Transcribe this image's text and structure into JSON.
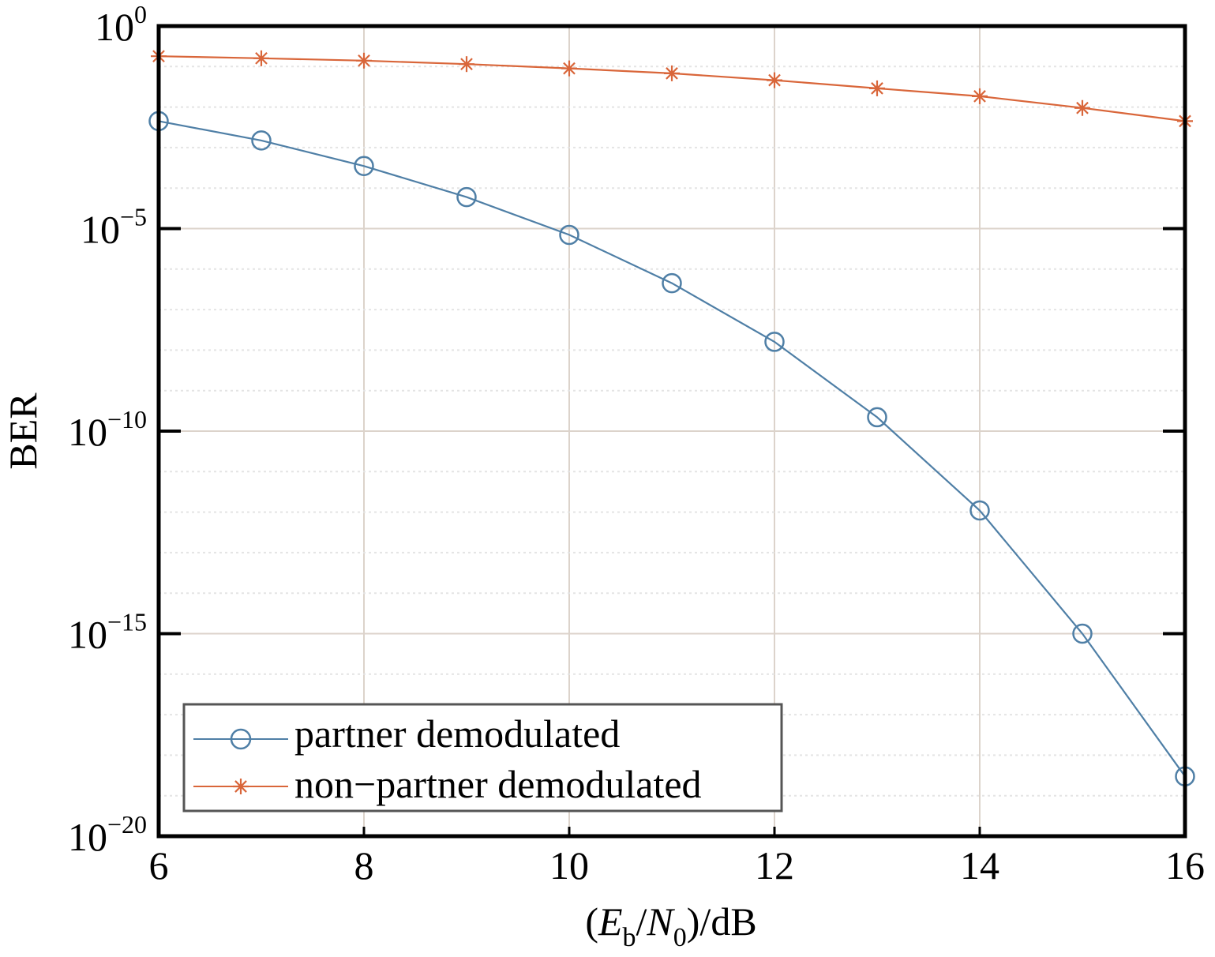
{
  "chart_data": {
    "type": "line",
    "title": "",
    "xlabel": {
      "prefix": "(",
      "var1": "E",
      "sub1": "b",
      "sep": "/",
      "var2": "N",
      "sub2": "0",
      "suffix": ")/dB"
    },
    "ylabel": "BER",
    "xlim": [
      6,
      16
    ],
    "ylim": [
      1e-20,
      1
    ],
    "yscale": "log",
    "x_ticks": [
      6,
      8,
      10,
      12,
      14,
      16
    ],
    "y_ticks": [
      {
        "value": 1,
        "base": "10",
        "exp": "0"
      },
      {
        "value": 1e-05,
        "base": "10",
        "exp": "−5"
      },
      {
        "value": 1e-10,
        "base": "10",
        "exp": "−10"
      },
      {
        "value": 1e-15,
        "base": "10",
        "exp": "−15"
      },
      {
        "value": 1e-20,
        "base": "10",
        "exp": "−20"
      }
    ],
    "grid": true,
    "legend_position": "bottom-left",
    "x": [
      6,
      7,
      8,
      9,
      10,
      11,
      12,
      13,
      14,
      15,
      16
    ],
    "series": [
      {
        "name": "partner demodulated",
        "marker": "circle",
        "color": "#4f7fa6",
        "values": [
          0.0045,
          0.0015,
          0.00035,
          6e-05,
          7e-06,
          4.5e-07,
          1.6e-08,
          2.2e-10,
          1.1e-12,
          1e-15,
          3e-19
        ]
      },
      {
        "name": "non−partner demodulated",
        "marker": "asterisk",
        "color": "#d9663a",
        "values": [
          0.18,
          0.16,
          0.14,
          0.115,
          0.09,
          0.068,
          0.046,
          0.029,
          0.0185,
          0.0095,
          0.0045
        ]
      }
    ]
  }
}
